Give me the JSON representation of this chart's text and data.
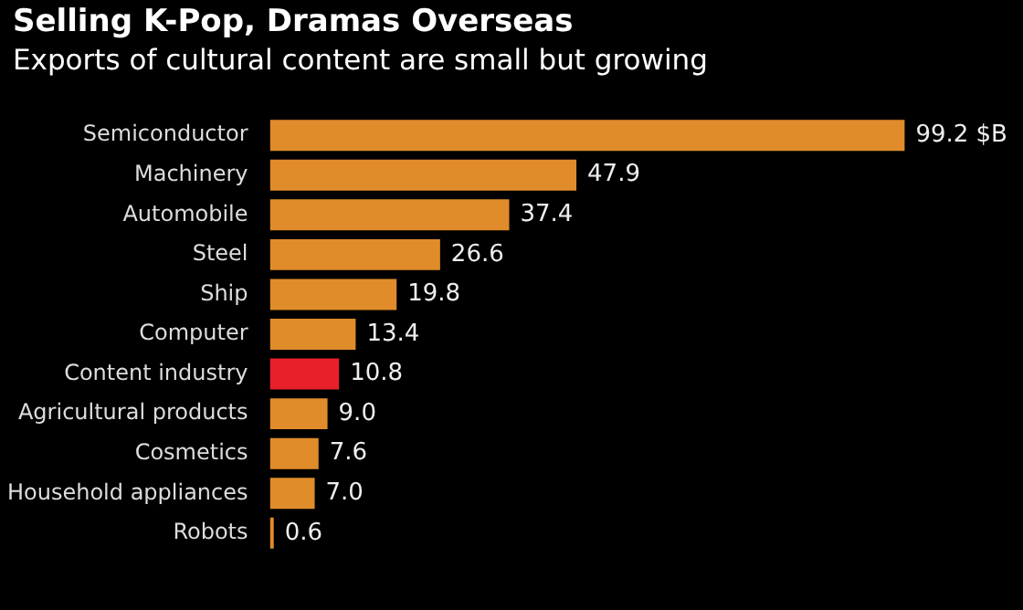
{
  "chart_data": {
    "type": "bar",
    "orientation": "horizontal",
    "title": "Selling K-Pop, Dramas Overseas",
    "subtitle": "Exports of cultural content are small but growing",
    "categories": [
      "Semiconductor",
      "Machinery",
      "Automobile",
      "Steel",
      "Ship",
      "Computer",
      "Content industry",
      "Agricultural products",
      "Cosmetics",
      "Household appliances",
      "Robots"
    ],
    "values": [
      99.2,
      47.9,
      37.4,
      26.6,
      19.8,
      13.4,
      10.8,
      9.0,
      7.6,
      7.0,
      0.6
    ],
    "colors": [
      "#e08c2a",
      "#e08c2a",
      "#e08c2a",
      "#e08c2a",
      "#e08c2a",
      "#e08c2a",
      "#e8202a",
      "#e08c2a",
      "#e08c2a",
      "#e08c2a",
      "#e08c2a"
    ],
    "value_labels": [
      "99.2 $B",
      "47.9",
      "37.4",
      "26.6",
      "19.8",
      "13.4",
      "10.8",
      "9.0",
      "7.6",
      "7.0",
      "0.6"
    ]
  }
}
